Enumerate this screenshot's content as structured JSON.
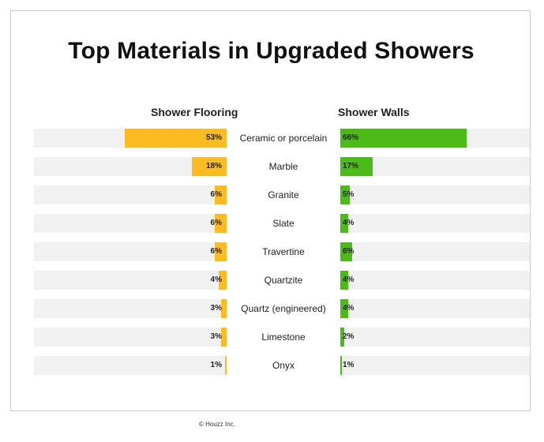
{
  "chart_data": {
    "type": "bar",
    "title": "Top Materials in Upgraded Showers",
    "categories": [
      "Ceramic or porcelain",
      "Marble",
      "Granite",
      "Slate",
      "Travertine",
      "Quartzite",
      "Quartz (engineered)",
      "Limestone",
      "Onyx"
    ],
    "series": [
      {
        "name": "Shower Flooring",
        "values": [
          53,
          18,
          6,
          6,
          6,
          4,
          3,
          3,
          1
        ],
        "labels": [
          "53%",
          "18%",
          "6%",
          "6%",
          "6%",
          "4%",
          "3%",
          "3%",
          "1%"
        ],
        "color": "#fbbb21"
      },
      {
        "name": "Shower Walls",
        "values": [
          66,
          17,
          5,
          4,
          6,
          4,
          4,
          2,
          1
        ],
        "labels": [
          "66%",
          "17%",
          "5%",
          "4%",
          "6%",
          "4%",
          "4%",
          "2%",
          "1%"
        ],
        "color": "#4cbb17"
      }
    ],
    "xlim": [
      0,
      100
    ],
    "unit": "%",
    "track_color": "#f1f1f1",
    "grid": false,
    "legend": "column headers at top"
  },
  "footer": "© Houzz Inc."
}
